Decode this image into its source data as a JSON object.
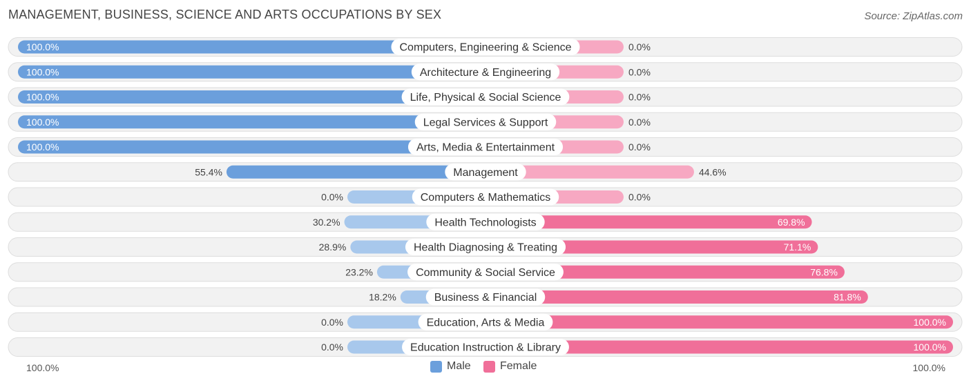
{
  "header": {
    "title": "MANAGEMENT, BUSINESS, SCIENCE AND ARTS OCCUPATIONS BY SEX",
    "source": "Source: ZipAtlas.com"
  },
  "colors": {
    "male": "#6b9fdc",
    "male_light": "#a8c8ec",
    "female": "#f06f99",
    "female_light": "#f7a8c2",
    "row_bg": "#f2f2f2",
    "row_border": "#dddddd"
  },
  "legend": {
    "male_label": "Male",
    "female_label": "Female"
  },
  "axis": {
    "left_label": "100.0%",
    "right_label": "100.0%"
  },
  "chart_data": {
    "type": "bar",
    "title": "MANAGEMENT, BUSINESS, SCIENCE AND ARTS OCCUPATIONS BY SEX",
    "orientation": "horizontal-diverging",
    "categories": [
      "Computers, Engineering & Science",
      "Architecture & Engineering",
      "Life, Physical & Social Science",
      "Legal Services & Support",
      "Arts, Media & Entertainment",
      "Management",
      "Computers & Mathematics",
      "Health Technologists",
      "Health Diagnosing & Treating",
      "Community & Social Service",
      "Business & Financial",
      "Education, Arts & Media",
      "Education Instruction & Library"
    ],
    "series": [
      {
        "name": "Male",
        "values": [
          100.0,
          100.0,
          100.0,
          100.0,
          100.0,
          55.4,
          0.0,
          30.2,
          28.9,
          23.2,
          18.2,
          0.0,
          0.0
        ]
      },
      {
        "name": "Female",
        "values": [
          0.0,
          0.0,
          0.0,
          0.0,
          0.0,
          44.6,
          0.0,
          69.8,
          71.1,
          76.8,
          81.8,
          100.0,
          100.0
        ]
      }
    ],
    "value_labels": {
      "male": [
        "100.0%",
        "100.0%",
        "100.0%",
        "100.0%",
        "100.0%",
        "55.4%",
        "0.0%",
        "30.2%",
        "28.9%",
        "23.2%",
        "18.2%",
        "0.0%",
        "0.0%"
      ],
      "female": [
        "0.0%",
        "0.0%",
        "0.0%",
        "0.0%",
        "0.0%",
        "44.6%",
        "0.0%",
        "69.8%",
        "71.1%",
        "76.8%",
        "81.8%",
        "100.0%",
        "100.0%"
      ]
    },
    "xlim": [
      -100,
      100
    ],
    "legend_position": "bottom-center"
  }
}
